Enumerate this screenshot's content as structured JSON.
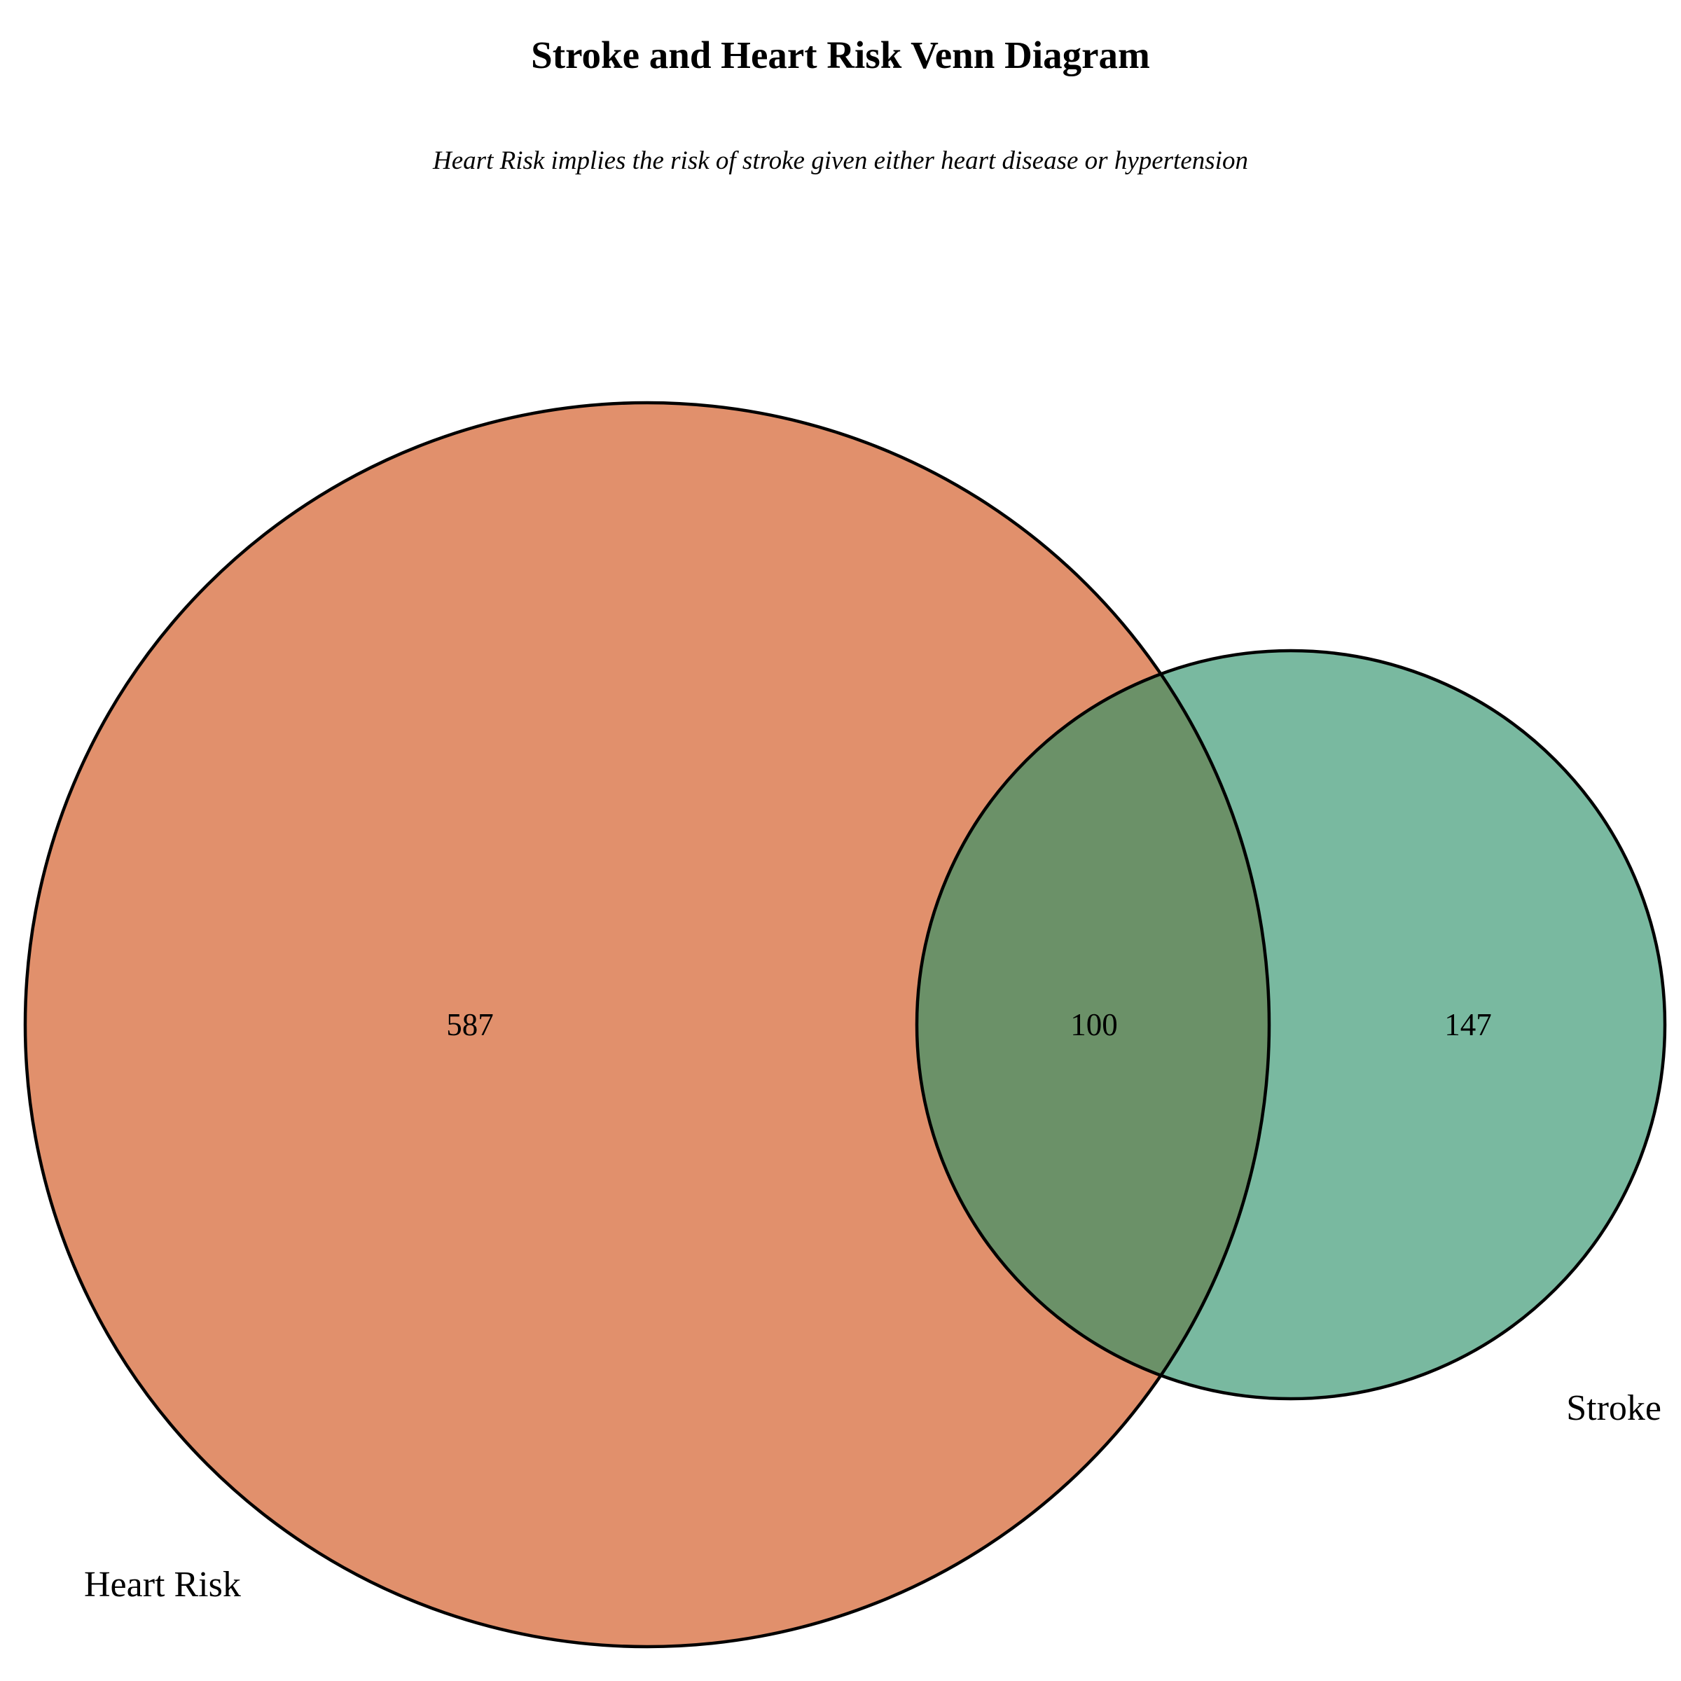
{
  "title": "Stroke and Heart Risk Venn Diagram",
  "subtitle": "Heart Risk implies the risk of stroke given either heart disease or hypertension",
  "sets": [
    {
      "name": "Heart Risk",
      "color": "#e1906c"
    },
    {
      "name": "Stroke",
      "color": "#79b9a0"
    }
  ],
  "overlap_color": "#6b9168",
  "outline_color": "#000000",
  "regions": {
    "heart_risk_only": "587",
    "both": "100",
    "stroke_only": "147"
  }
}
